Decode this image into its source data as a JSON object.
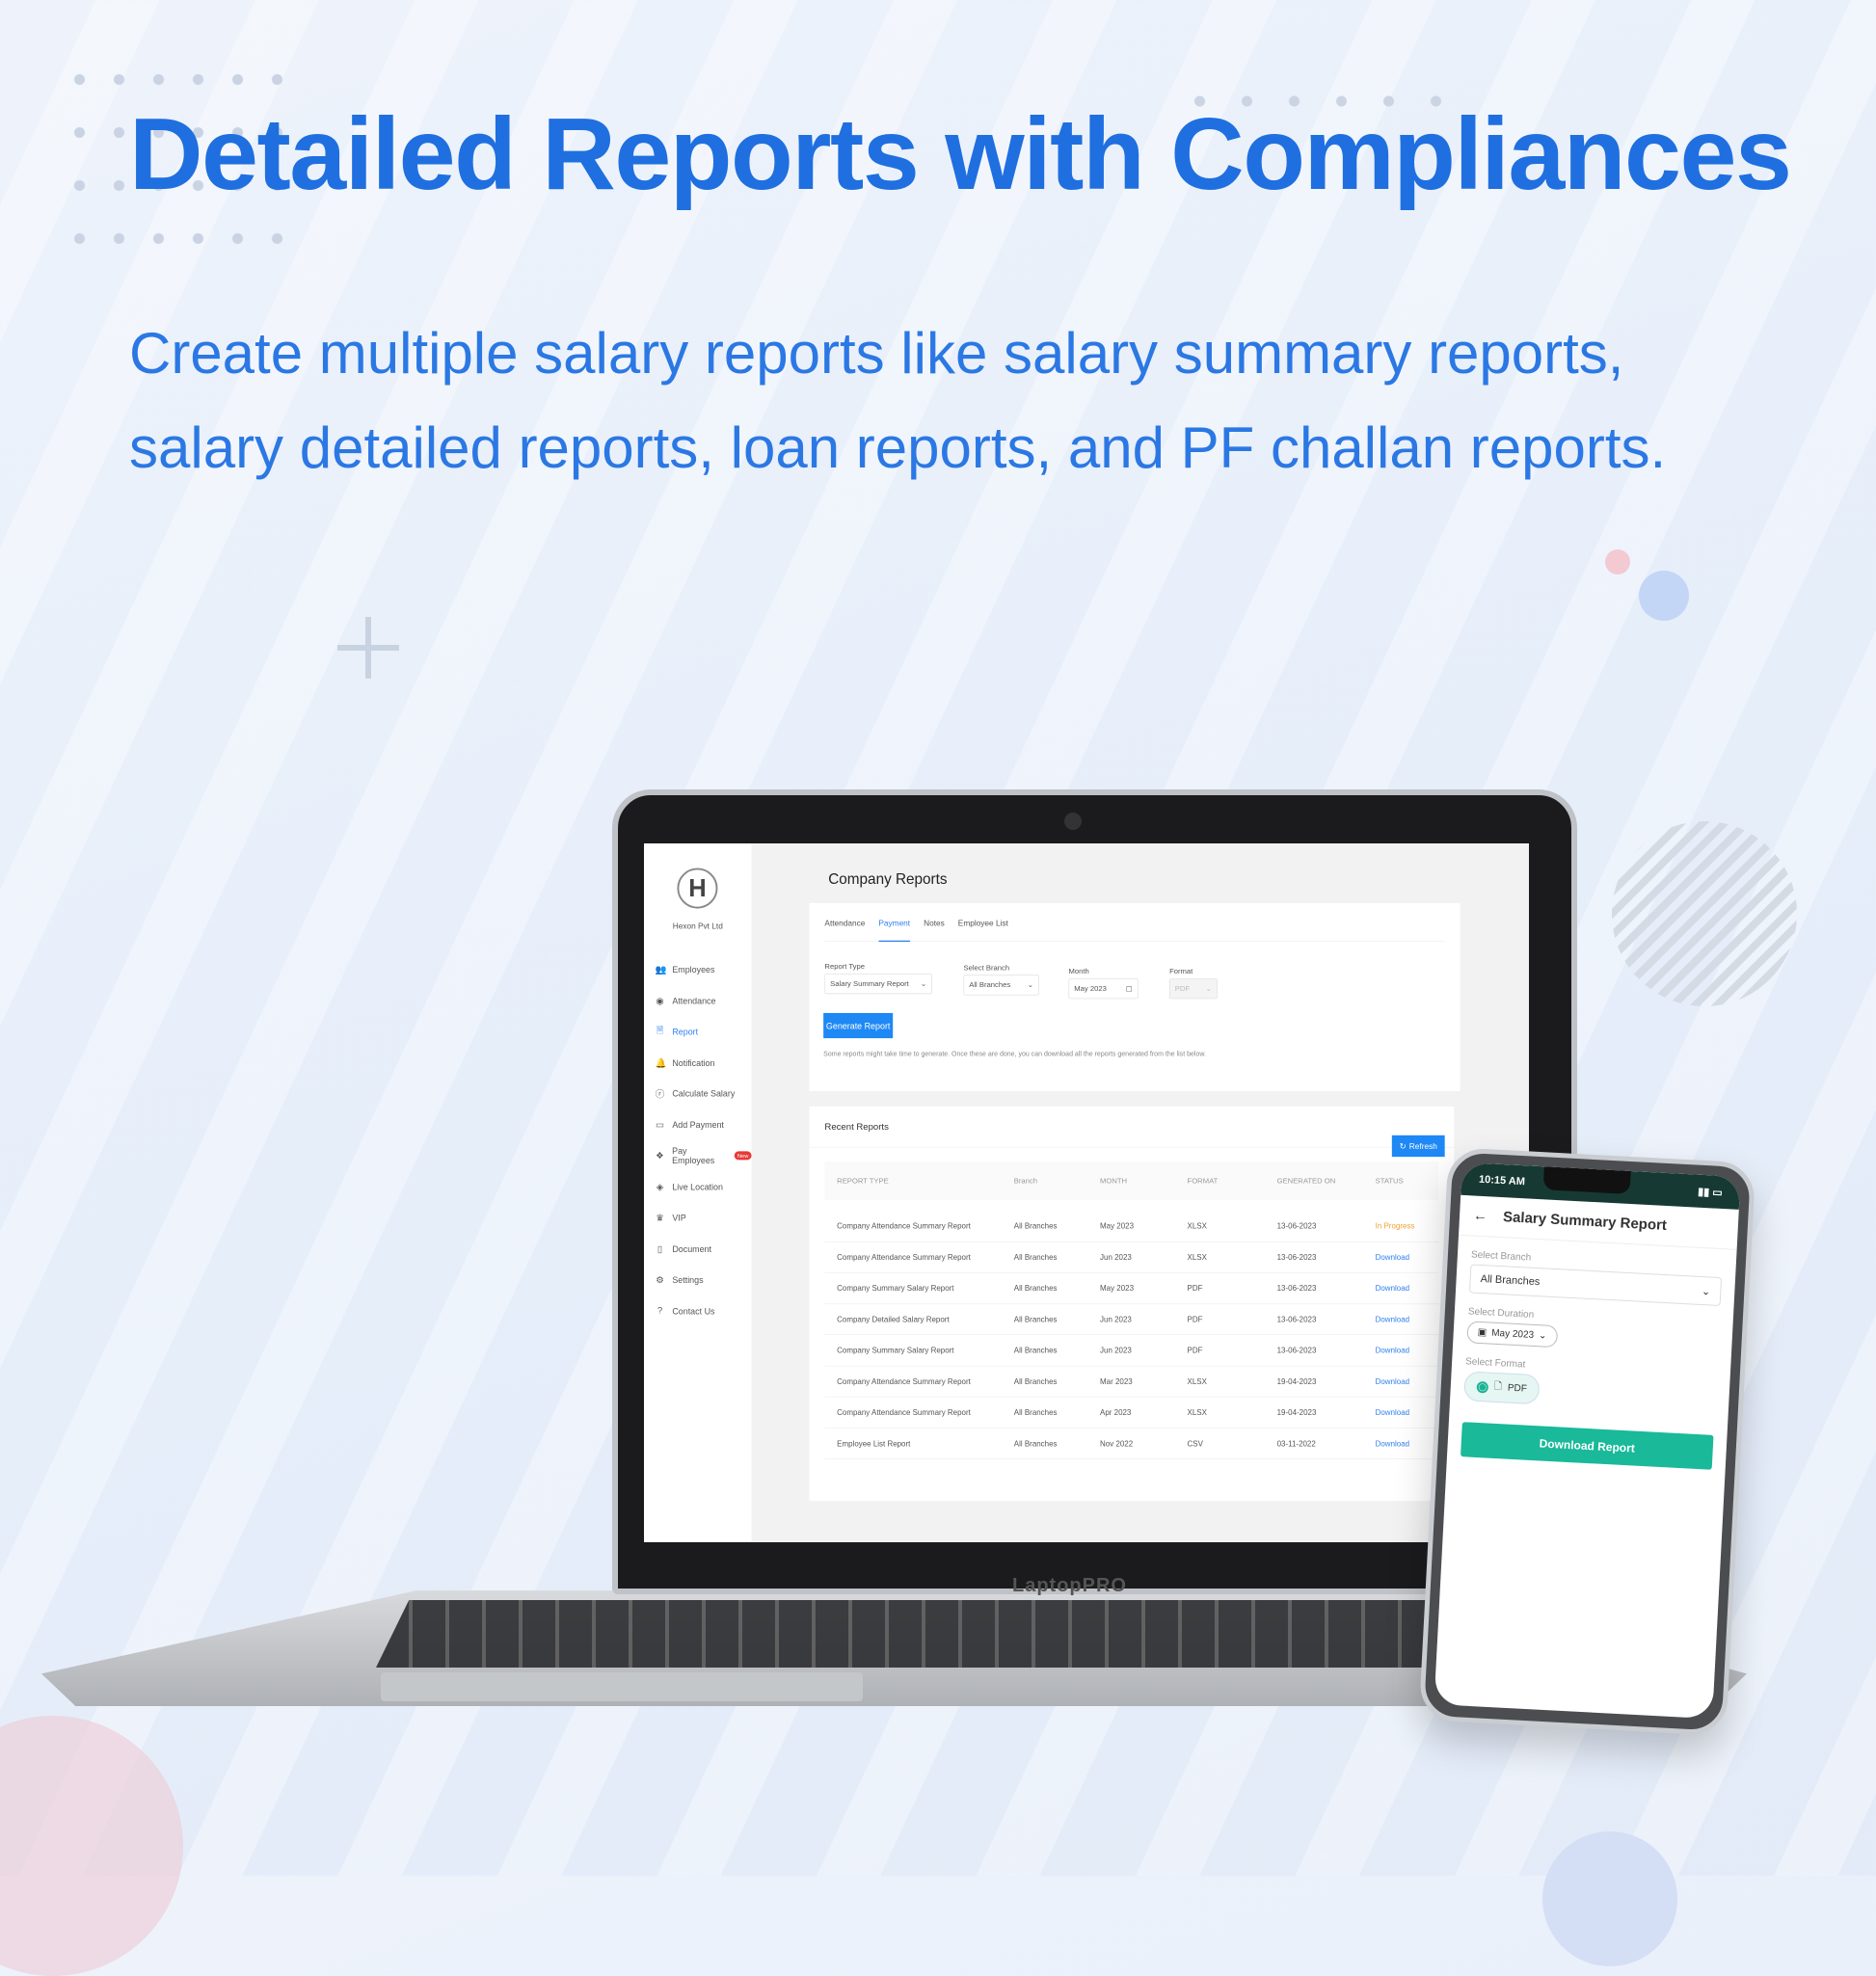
{
  "headline": "Detailed Reports with Compliances",
  "subtitle_lines": [
    "Create multiple salary reports like salary summary reports,",
    "salary detailed reports, loan reports, and PF challan reports."
  ],
  "colors": {
    "headline": "#1f6fe0",
    "primary": "#1e88f5",
    "mobile_accent": "#19b99a",
    "in_progress": "#f0a030"
  },
  "laptop_brand": "LaptopPRO",
  "app": {
    "company": "Hexon Pvt Ltd",
    "logo_letter": "H",
    "sidebar": [
      {
        "label": "Employees",
        "icon": "users-icon",
        "glyph": "👥"
      },
      {
        "label": "Attendance",
        "icon": "fingerprint-icon",
        "glyph": "◉"
      },
      {
        "label": "Report",
        "icon": "report-icon",
        "glyph": "🗎",
        "active": true
      },
      {
        "label": "Notification",
        "icon": "bell-icon",
        "glyph": "🔔"
      },
      {
        "label": "Calculate Salary",
        "icon": "rupee-icon",
        "glyph": "ⓡ"
      },
      {
        "label": "Add Payment",
        "icon": "card-icon",
        "glyph": "▭"
      },
      {
        "label": "Pay Employees",
        "icon": "money-icon",
        "glyph": "❖",
        "badge": "New"
      },
      {
        "label": "Live Location",
        "icon": "location-icon",
        "glyph": "◈"
      },
      {
        "label": "VIP",
        "icon": "crown-icon",
        "glyph": "♛"
      },
      {
        "label": "Document",
        "icon": "document-icon",
        "glyph": "▯"
      },
      {
        "label": "Settings",
        "icon": "gear-icon",
        "glyph": "⚙"
      },
      {
        "label": "Contact Us",
        "icon": "help-icon",
        "glyph": "?"
      }
    ],
    "page_title": "Company Reports",
    "tabs": [
      "Attendance",
      "Payment",
      "Notes",
      "Employee List"
    ],
    "active_tab": "Payment",
    "form": {
      "report_type": {
        "label": "Report Type",
        "value": "Salary Summary Report"
      },
      "branch": {
        "label": "Select Branch",
        "value": "All Branches"
      },
      "month": {
        "label": "Month",
        "value": "May 2023"
      },
      "format": {
        "label": "Format",
        "value": "PDF"
      },
      "generate": "Generate Report",
      "note": "Some reports might take time to generate. Once these are done, you can download all the reports generated from the list below."
    },
    "recent": {
      "title": "Recent Reports",
      "refresh": "Refresh",
      "columns": [
        "REPORT TYPE",
        "Branch",
        "MONTH",
        "FORMAT",
        "GENERATED ON",
        "STATUS"
      ],
      "rows": [
        [
          "Company Attendance Summary Report",
          "All Branches",
          "May 2023",
          "XLSX",
          "13-06-2023",
          "In Progress"
        ],
        [
          "Company Attendance Summary Report",
          "All Branches",
          "Jun 2023",
          "XLSX",
          "13-06-2023",
          "Download"
        ],
        [
          "Company Summary Salary Report",
          "All Branches",
          "May 2023",
          "PDF",
          "13-06-2023",
          "Download"
        ],
        [
          "Company Detailed Salary Report",
          "All Branches",
          "Jun 2023",
          "PDF",
          "13-06-2023",
          "Download"
        ],
        [
          "Company Summary Salary Report",
          "All Branches",
          "Jun 2023",
          "PDF",
          "13-06-2023",
          "Download"
        ],
        [
          "Company Attendance Summary Report",
          "All Branches",
          "Mar 2023",
          "XLSX",
          "19-04-2023",
          "Download"
        ],
        [
          "Company Attendance Summary Report",
          "All Branches",
          "Apr 2023",
          "XLSX",
          "19-04-2023",
          "Download"
        ],
        [
          "Employee List Report",
          "All Branches",
          "Nov 2022",
          "CSV",
          "03-11-2022",
          "Download"
        ]
      ]
    }
  },
  "phone": {
    "time": "10:15 AM",
    "title": "Salary Summary Report",
    "branch_label": "Select Branch",
    "branch_value": "All Branches",
    "duration_label": "Select Duration",
    "duration_value": "May 2023",
    "format_label": "Select Format",
    "format_value": "PDF",
    "button": "Download Report"
  }
}
